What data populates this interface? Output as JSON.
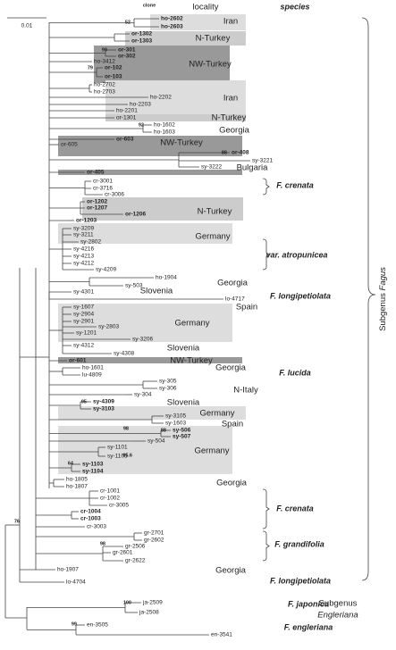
{
  "header": {
    "clone": "clone",
    "locality": "locality",
    "species": "species"
  },
  "scale": "0.01",
  "tips": [
    "ho-2602",
    "ho-2603",
    "or-1302",
    "or-1303",
    "or-301",
    "or-302",
    "ho-3412",
    "or-102",
    "or-103",
    "ho-2702",
    "ho-2703",
    "ho-2202",
    "ho-2203",
    "ho-2201",
    "or-1301",
    "ho-1602",
    "ho-1603",
    "or-603",
    "or-605",
    "or-408",
    "sy-3221",
    "sy-3222",
    "or-405",
    "cr-3001",
    "cr-3716",
    "cr-3006",
    "or-1202",
    "or-1207",
    "or-1206",
    "or-1203",
    "sy-3209",
    "sy-3211",
    "sy-2802",
    "sy-4216",
    "sy-4213",
    "sy-4212",
    "sy-4209",
    "ho-1904",
    "sy-503",
    "sy-4301",
    "lo-4717",
    "sy-1607",
    "sy-2904",
    "sy-2901",
    "sy-2803",
    "sy-1201",
    "sy-3206",
    "sy-4312",
    "sy-4308",
    "or-601",
    "ho-1601",
    "lu-4809",
    "sy-305",
    "sy-306",
    "sy-304",
    "sy-4309",
    "sy-3103",
    "sy-3105",
    "sy-1603",
    "sy-506",
    "sy-507",
    "sy-504",
    "sy-1101",
    "sy-1105",
    "sy-1103",
    "sy-1104",
    "ho-1805",
    "ho-1807",
    "cr-1001",
    "cr-1002",
    "cr-3005",
    "cr-1004",
    "cr-1003",
    "cr-3003",
    "gr-2701",
    "gr-2602",
    "gr-2506",
    "gr-2601",
    "gr-2622",
    "ho-1907",
    "lo-4704",
    "ja-2509",
    "ja-2508",
    "en-3505",
    "en-3541"
  ],
  "supports": [
    "52",
    "99",
    "79",
    "92",
    "88",
    "95",
    "98",
    "88",
    "65.6",
    "64",
    "76",
    "98",
    "100",
    "99"
  ],
  "localities": [
    "Iran",
    "N-Turkey",
    "NW-Turkey",
    "Iran",
    "N-Turkey",
    "Georgia",
    "NW-Turkey",
    "Bulgaria",
    "N-Turkey",
    "Germany",
    "Georgia",
    "Slovenia",
    "Spain",
    "Germany",
    "Slovenia",
    "NW-Turkey",
    "Georgia",
    "N-Italy",
    "Slovenia",
    "Germany",
    "Spain",
    "Germany",
    "Georgia",
    "Georgia"
  ],
  "species": [
    "F. crenata",
    "var. atropunicea",
    "F. longipetiolata",
    "F. lucida",
    "F. crenata",
    "F. grandifolia",
    "F. longipetiolata",
    "F. japonica",
    "F. engleriana"
  ],
  "subgenera": [
    {
      "label": "Subgenus",
      "name": "Fagus"
    },
    {
      "label": "Subgenus",
      "name": "Engleriana"
    }
  ]
}
